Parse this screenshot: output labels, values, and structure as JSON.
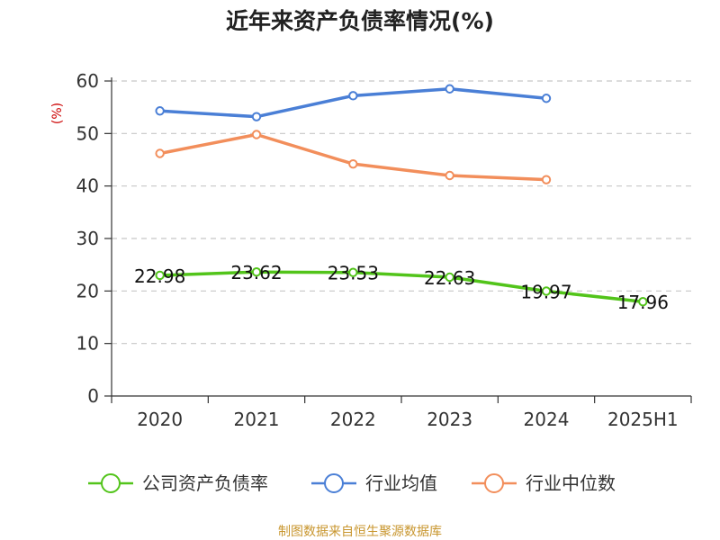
{
  "chart_data": {
    "type": "line",
    "title": "近年来资产负债率情况(%)",
    "ylabel": "(%)",
    "ylim": [
      0,
      60
    ],
    "yticks": [
      0,
      10,
      20,
      30,
      40,
      50,
      60
    ],
    "grid": true,
    "legend_position": "bottom",
    "categories": [
      "2020",
      "2021",
      "2022",
      "2023",
      "2024",
      "2025H1"
    ],
    "series": [
      {
        "name": "公司资产负债率",
        "color": "#52c41a",
        "values": [
          22.98,
          23.62,
          23.53,
          22.63,
          19.97,
          17.96
        ],
        "show_labels": true
      },
      {
        "name": "行业均值",
        "color": "#4a7fd6",
        "values": [
          54.3,
          53.2,
          57.2,
          58.5,
          56.7,
          null
        ],
        "show_labels": false
      },
      {
        "name": "行业中位数",
        "color": "#f28e5b",
        "values": [
          46.2,
          49.8,
          44.2,
          42.0,
          41.2,
          null
        ],
        "show_labels": false
      }
    ]
  },
  "source": "制图数据来自恒生聚源数据库"
}
